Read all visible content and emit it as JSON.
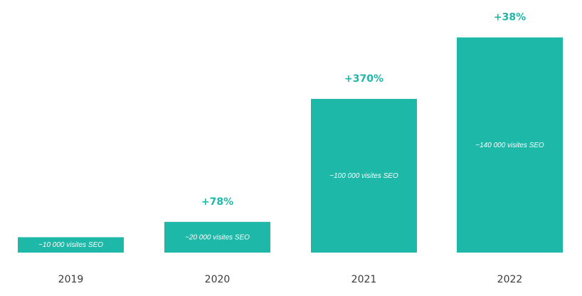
{
  "chart_data": {
    "type": "bar",
    "categories": [
      "2019",
      "2020",
      "2021",
      "2022"
    ],
    "values": [
      10000,
      20000,
      100000,
      140000
    ],
    "bar_labels": [
      "~10 000 visites SEO",
      "~20 000 visites SEO",
      "~100 000 visites SEO",
      "~140 000 visites SEO"
    ],
    "growth_labels": [
      "",
      "+78%",
      "+370%",
      "+38%"
    ],
    "title": "",
    "xlabel": "",
    "ylabel": "",
    "grid": false,
    "legend": "none",
    "colors": {
      "bar": "#1eb8a8",
      "growth_text": "#1eb8a8",
      "bar_text": "#ffffff",
      "tick_text": "#3a3a3a"
    }
  }
}
